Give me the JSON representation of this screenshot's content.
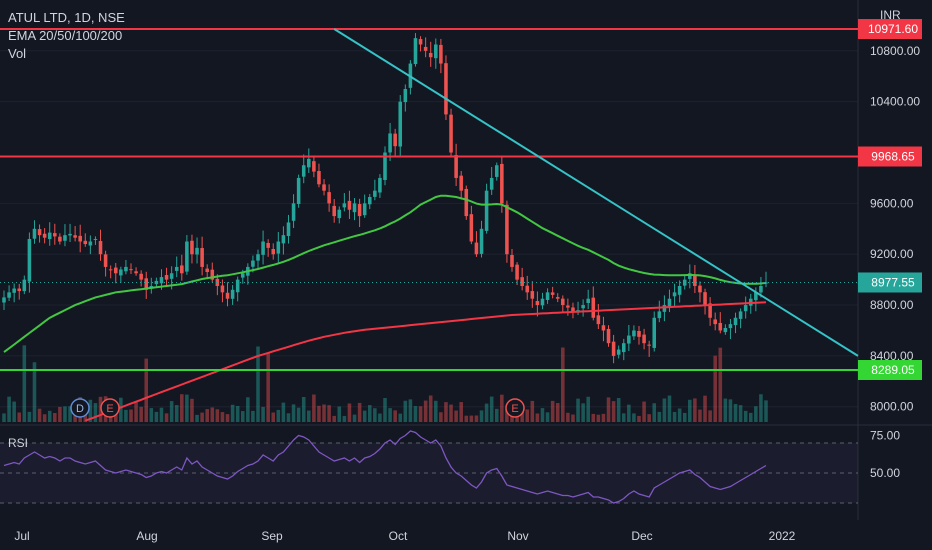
{
  "legend": {
    "symbol": "ATUL LTD, 1D, NSE",
    "ema": "EMA 20/50/100/200",
    "vol": "Vol"
  },
  "currency": "INR",
  "rsi_title": "RSI",
  "colors": {
    "background": "#131722",
    "up": "#26a69a",
    "down": "#ef5350",
    "ema50": "#43c743",
    "ema200": "#f23645",
    "resistance": "#f23645",
    "support": "#33d633",
    "trendline": "#35c3c7",
    "rsi": "#7e57c2"
  },
  "chart_data": {
    "type": "candlestick",
    "price_axis": {
      "ticks": [
        8000,
        8400,
        8800,
        9200,
        9600,
        10400,
        10800
      ],
      "ylim": [
        7880,
        11200
      ]
    },
    "time_axis": {
      "labels": [
        "Jul",
        "Aug",
        "Sep",
        "Oct",
        "Nov",
        "Dec",
        "2022"
      ]
    },
    "horizontal_levels": [
      {
        "label": "10971.60",
        "value": 10971.6,
        "color": "#f23645"
      },
      {
        "label": "9968.65",
        "value": 9968.65,
        "color": "#f23645"
      },
      {
        "label": "8289.05",
        "value": 8289.05,
        "color": "#33d633"
      }
    ],
    "last_price": {
      "label": "8977.55",
      "value": 8977.55
    },
    "trendline": {
      "from": {
        "bar": 0.43,
        "price": 10971.6
      },
      "to": {
        "bar": 1.0,
        "price": 8400
      }
    },
    "event_markers": [
      {
        "label": "D",
        "month": "Jul"
      },
      {
        "label": "E",
        "month": "Jul"
      },
      {
        "label": "E",
        "month": "Nov"
      }
    ],
    "closes": [
      8860,
      8900,
      8930,
      8910,
      9000,
      9320,
      9400,
      9350,
      9330,
      9370,
      9340,
      9300,
      9350,
      9360,
      9330,
      9300,
      9280,
      9300,
      9320,
      9200,
      9100,
      9080,
      9050,
      9080,
      9100,
      9080,
      9050,
      9000,
      8920,
      8950,
      8990,
      9020,
      9000,
      9050,
      9100,
      9050,
      9300,
      9200,
      9250,
      9100,
      9060,
      9000,
      8950,
      8900,
      8850,
      8920,
      9000,
      9050,
      9100,
      9150,
      9200,
      9300,
      9250,
      9200,
      9300,
      9350,
      9450,
      9600,
      9800,
      9900,
      9950,
      9850,
      9750,
      9700,
      9600,
      9500,
      9550,
      9600,
      9550,
      9600,
      9500,
      9600,
      9650,
      9700,
      9800,
      10000,
      10150,
      10050,
      10400,
      10500,
      10700,
      10900,
      10850,
      10800,
      10750,
      10850,
      10700,
      10300,
      10000,
      9800,
      9700,
      9500,
      9300,
      9200,
      9400,
      9700,
      9800,
      9900,
      9600,
      9200,
      9100,
      9000,
      8950,
      8900,
      8850,
      8800,
      8850,
      8900,
      8880,
      8850,
      8800,
      8780,
      8750,
      8760,
      8800,
      8850,
      8700,
      8650,
      8600,
      8500,
      8400,
      8450,
      8500,
      8560,
      8600,
      8550,
      8500,
      8480,
      8700,
      8750,
      8800,
      8850,
      8900,
      8950,
      9000,
      9050,
      8950,
      8900,
      8800,
      8700,
      8650,
      8600,
      8620,
      8650,
      8700,
      8750,
      8800,
      8850,
      8900,
      8950,
      8977.55
    ],
    "ema50": [
      8430,
      8460,
      8490,
      8520,
      8550,
      8580,
      8610,
      8640,
      8670,
      8700,
      8720,
      8740,
      8760,
      8780,
      8800,
      8815,
      8830,
      8845,
      8860,
      8870,
      8880,
      8890,
      8900,
      8905,
      8910,
      8915,
      8920,
      8925,
      8930,
      8935,
      8940,
      8945,
      8950,
      8955,
      8960,
      8965,
      8975,
      8985,
      8995,
      9005,
      9012,
      9018,
      9025,
      9030,
      9035,
      9042,
      9050,
      9058,
      9066,
      9075,
      9084,
      9095,
      9106,
      9116,
      9128,
      9140,
      9155,
      9172,
      9190,
      9208,
      9225,
      9240,
      9255,
      9270,
      9282,
      9294,
      9306,
      9318,
      9330,
      9342,
      9352,
      9364,
      9376,
      9388,
      9402,
      9420,
      9440,
      9458,
      9480,
      9505,
      9530,
      9560,
      9590,
      9610,
      9630,
      9650,
      9660,
      9660,
      9655,
      9650,
      9640,
      9630,
      9615,
      9598,
      9590,
      9590,
      9592,
      9595,
      9590,
      9570,
      9550,
      9530,
      9505,
      9480,
      9455,
      9430,
      9405,
      9385,
      9365,
      9345,
      9325,
      9305,
      9285,
      9266,
      9250,
      9235,
      9215,
      9195,
      9175,
      9155,
      9130,
      9110,
      9095,
      9082,
      9072,
      9062,
      9052,
      9045,
      9040,
      9038,
      9036,
      9034,
      9034,
      9035,
      9036,
      9037,
      9036,
      9033,
      9028,
      9020,
      9010,
      8998,
      8988,
      8980,
      8974,
      8970,
      8968,
      8967,
      8968,
      8970,
      8974
    ],
    "ema200": [
      7600,
      7620,
      7640,
      7660,
      7680,
      7700,
      7720,
      7740,
      7760,
      7780,
      7800,
      7815,
      7830,
      7845,
      7860,
      7875,
      7890,
      7905,
      7920,
      7935,
      7950,
      7965,
      7980,
      7995,
      8010,
      8025,
      8040,
      8055,
      8070,
      8085,
      8100,
      8115,
      8130,
      8145,
      8160,
      8175,
      8190,
      8205,
      8220,
      8235,
      8250,
      8265,
      8280,
      8295,
      8310,
      8325,
      8340,
      8355,
      8370,
      8385,
      8400,
      8412,
      8424,
      8436,
      8448,
      8460,
      8472,
      8484,
      8496,
      8508,
      8520,
      8530,
      8540,
      8550,
      8558,
      8566,
      8574,
      8582,
      8588,
      8594,
      8600,
      8605,
      8610,
      8614,
      8618,
      8622,
      8626,
      8630,
      8634,
      8638,
      8642,
      8646,
      8650,
      8654,
      8658,
      8662,
      8666,
      8670,
      8674,
      8678,
      8682,
      8686,
      8690,
      8694,
      8698,
      8702,
      8706,
      8710,
      8714,
      8718,
      8722,
      8724,
      8726,
      8728,
      8730,
      8732,
      8734,
      8736,
      8738,
      8740,
      8742,
      8744,
      8746,
      8748,
      8750,
      8752,
      8754,
      8756,
      8758,
      8760,
      8762,
      8764,
      8766,
      8768,
      8770,
      8772,
      8774,
      8776,
      8778,
      8780,
      8782,
      8784,
      8786,
      8788,
      8790,
      8792,
      8794,
      8796,
      8798,
      8800,
      8802,
      8804,
      8806,
      8808,
      8810,
      8812,
      8814,
      8816,
      8818,
      8820,
      8822
    ],
    "rsi_axis": {
      "ticks": [
        75,
        50
      ],
      "ylim": [
        20,
        80
      ]
    },
    "rsi": [
      55,
      56,
      57,
      56,
      60,
      62,
      64,
      62,
      60,
      61,
      60,
      58,
      60,
      60,
      58,
      57,
      56,
      57,
      58,
      55,
      52,
      51,
      50,
      51,
      52,
      51,
      50,
      49,
      47,
      48,
      50,
      51,
      50,
      52,
      54,
      52,
      60,
      56,
      58,
      54,
      52,
      50,
      48,
      47,
      46,
      48,
      51,
      53,
      55,
      56,
      58,
      62,
      60,
      58,
      62,
      64,
      68,
      72,
      75,
      74,
      72,
      68,
      64,
      62,
      60,
      58,
      59,
      60,
      58,
      60,
      57,
      60,
      61,
      63,
      66,
      70,
      72,
      69,
      73,
      75,
      78,
      77,
      74,
      72,
      70,
      72,
      68,
      60,
      54,
      50,
      48,
      45,
      42,
      40,
      44,
      50,
      52,
      53,
      48,
      42,
      41,
      40,
      39,
      38,
      37,
      36,
      37,
      38,
      37,
      36,
      35,
      35,
      34,
      35,
      36,
      37,
      34,
      34,
      33,
      32,
      30,
      31,
      33,
      36,
      38,
      36,
      35,
      34,
      40,
      42,
      44,
      46,
      48,
      50,
      51,
      52,
      49,
      47,
      44,
      41,
      40,
      39,
      40,
      41,
      43,
      45,
      47,
      49,
      51,
      53,
      55
    ]
  }
}
